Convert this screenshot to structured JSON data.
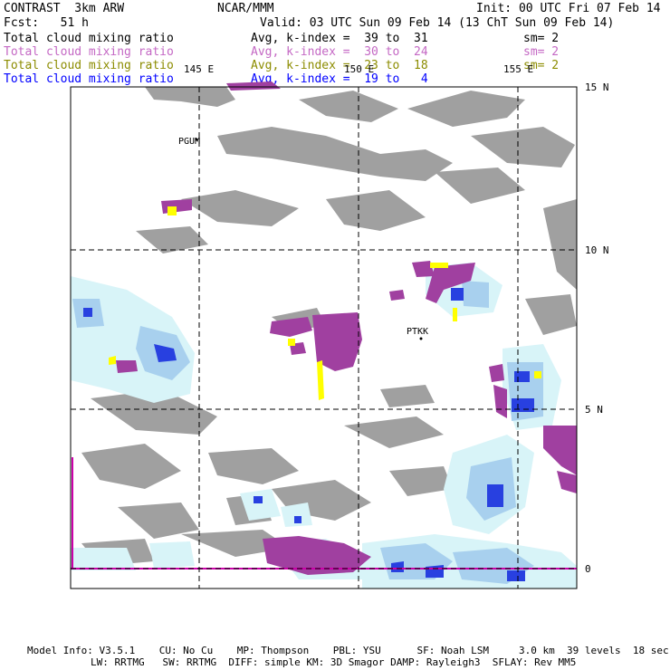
{
  "header": {
    "model": "CONTRAST  3km ARW",
    "center": "NCAR/MMM",
    "init": "Init: 00 UTC Fri 07 Feb 14",
    "fcst": "Fcst:   51 h",
    "valid": "Valid: 03 UTC Sun 09 Feb 14 (13 ChT Sun 09 Feb 14)"
  },
  "legend": [
    {
      "field": "Total cloud mixing ratio",
      "range": "Avg, k-index =  39 to  31",
      "sm": "sm= 2",
      "color": "#000000"
    },
    {
      "field": "Total cloud mixing ratio",
      "range": "Avg, k-index =  30 to  24",
      "sm": "sm= 2",
      "color": "#c468c4"
    },
    {
      "field": "Total cloud mixing ratio",
      "range": "Avg, k-index =  23 to  18",
      "sm": "sm= 2",
      "color": "#8c8c00"
    },
    {
      "field": "Total cloud mixing ratio",
      "range": "Avg, k-index =  19 to   4",
      "sm": "",
      "color": "#0000ff"
    }
  ],
  "map": {
    "lon_labels": [
      "145 E",
      "150 E",
      "155 E"
    ],
    "lat_labels": [
      "15 N",
      "10 N",
      "5 N",
      "0"
    ],
    "stations": [
      "PGUM",
      "PTKK"
    ],
    "colors": {
      "gray": "#a0a0a0",
      "purple": "#a040a0",
      "lightcyan": "#d8f4f8",
      "lightblue": "#a8d0ee",
      "blue": "#2840e0",
      "darkblue": "#0000a0",
      "yellow": "#ffff00",
      "equator": "#cc00aa"
    }
  },
  "footer": {
    "line1": "Model Info: V3.5.1    CU: No Cu    MP: Thompson    PBL: YSU      SF: Noah LSM     3.0 km  39 levels  18 sec",
    "line2": "LW: RRTMG   SW: RRTMG  DIFF: simple KM: 3D Smagor DAMP: Rayleigh3  SFLAY: Rev MM5"
  }
}
